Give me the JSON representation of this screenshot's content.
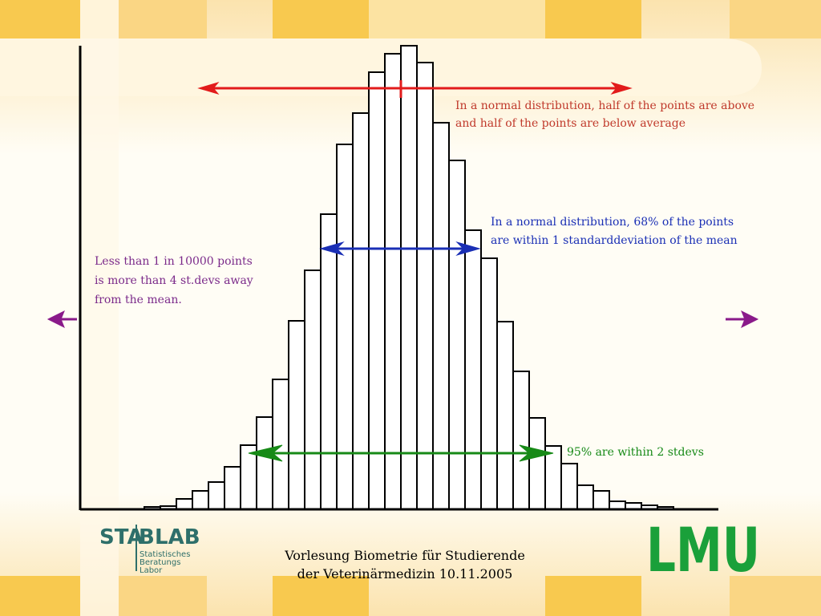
{
  "chart_data": {
    "type": "bar",
    "categories": [
      null,
      null,
      null,
      null,
      null,
      null,
      null,
      null,
      null,
      null,
      null,
      null,
      null,
      null,
      null,
      null,
      null,
      null,
      null,
      null,
      null,
      null,
      null,
      null,
      null,
      null,
      null,
      null,
      null,
      null,
      null,
      null,
      null
    ],
    "values": [
      3,
      4,
      13,
      23,
      34,
      53,
      80,
      115,
      162,
      235,
      298,
      368,
      455,
      494,
      545,
      568,
      578,
      557,
      482,
      435,
      348,
      313,
      234,
      172,
      114,
      79,
      57,
      30,
      23,
      10,
      8,
      5,
      3
    ],
    "ylim": [
      0,
      578
    ],
    "color": "#ffffff",
    "annotations": {
      "mean": [
        "In  a normal distribution, half of the points are above",
        "and half of the points are below average"
      ],
      "sd1": [
        "In a normal distribution, 68% of the points",
        "are within 1 standarddeviation of the mean"
      ],
      "sd4": [
        "Less than 1 in 10000 points",
        "is more than 4 st.devs away",
        "from the mean."
      ],
      "sd2": [
        "95% are within 2 stdevs"
      ]
    }
  },
  "footer": {
    "lines": [
      "Vorlesung Biometrie für Studierende",
      "der Veterinärmedizin 10.11.2005"
    ],
    "logo_left": {
      "name": [
        "STA",
        "B",
        "LAB"
      ],
      "sub": [
        "Statistisches",
        "Beratungs",
        "Labor"
      ]
    },
    "logo_right": "LMU"
  }
}
